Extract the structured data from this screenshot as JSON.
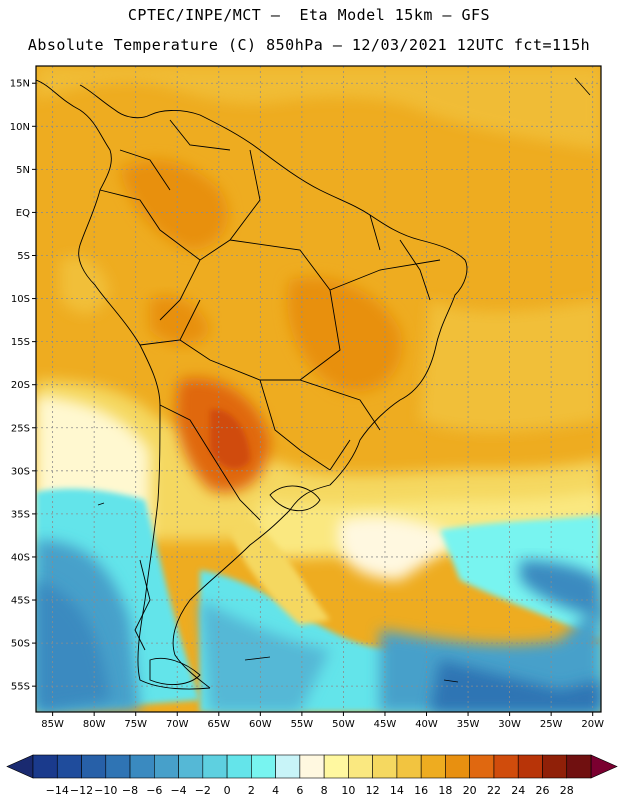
{
  "header": {
    "line1": "CPTEC/INPE/MCT –  Eta Model 15km – GFS",
    "line2": "Absolute Temperature (C) 850hPa – 12/03/2021 12UTC fct=115h"
  },
  "map": {
    "lat_labels": [
      "15N",
      "10N",
      "5N",
      "EQ",
      "5S",
      "10S",
      "15S",
      "20S",
      "25S",
      "30S",
      "35S",
      "40S",
      "45S",
      "50S",
      "55S"
    ],
    "lon_labels": [
      "85W",
      "80W",
      "75W",
      "70W",
      "65W",
      "60W",
      "55W",
      "50W",
      "45W",
      "40W",
      "35W",
      "30W",
      "25W",
      "20W"
    ],
    "lat_range": [
      -58,
      17
    ],
    "lon_range": [
      -87,
      -19
    ]
  },
  "colorbar": {
    "labels": [
      "-14",
      "-12",
      "-10",
      "-8",
      "-6",
      "-4",
      "-2",
      "0",
      "2",
      "4",
      "6",
      "8",
      "10",
      "12",
      "14",
      "16",
      "18",
      "20",
      "22",
      "24",
      "26",
      "28"
    ],
    "colors": [
      "#1a3a8c",
      "#1f4c9c",
      "#2760a8",
      "#2f74b4",
      "#3a8ac0",
      "#47a0ca",
      "#55b8d6",
      "#5ed0e0",
      "#64e4ea",
      "#78f4f0",
      "#c8f4f8",
      "#fff8e0",
      "#fff8a0",
      "#fae880",
      "#f5d860",
      "#f2c440",
      "#eeac20",
      "#e89010",
      "#e06810",
      "#d04c0c",
      "#b83408",
      "#902008",
      "#701010"
    ],
    "arrow_left_color": "#1a2a70",
    "arrow_right_color": "#7a0030"
  }
}
